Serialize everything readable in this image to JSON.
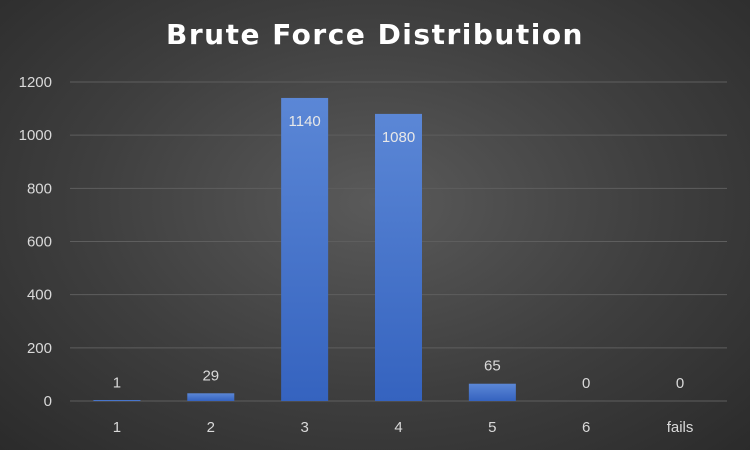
{
  "chart_data": {
    "type": "bar",
    "title": "Brute Force Distribution",
    "xlabel": "",
    "ylabel": "",
    "categories": [
      "1",
      "2",
      "3",
      "4",
      "5",
      "6",
      "fails"
    ],
    "values": [
      1,
      29,
      1140,
      1080,
      65,
      0,
      0
    ],
    "ylim": [
      0,
      1200
    ],
    "yticks": [
      0,
      200,
      400,
      600,
      800,
      1000,
      1200
    ],
    "grid": true,
    "legend": "none",
    "colors": {
      "bar_top": "#5b87d6",
      "bar_bottom": "#3563bf",
      "grid": "#5e5e5e",
      "text": "#d9d9d9"
    }
  }
}
